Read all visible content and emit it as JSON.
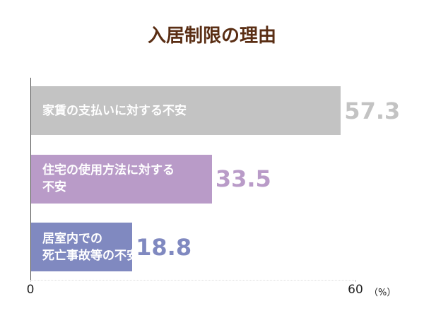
{
  "chart_data": {
    "type": "hbar",
    "title": "入居制限の理由",
    "categories": [
      "家賃の支払いに対する不安",
      "住宅の使用方法に対する\n不安",
      "居室内での\n死亡事故等の不安"
    ],
    "values": [
      57.3,
      33.5,
      18.8
    ],
    "colors": [
      "#c3c3c3",
      "#b99bc8",
      "#8089c0"
    ],
    "xlim": [
      0,
      60
    ],
    "xticks": [
      0,
      60
    ],
    "x_label": "（%）"
  }
}
